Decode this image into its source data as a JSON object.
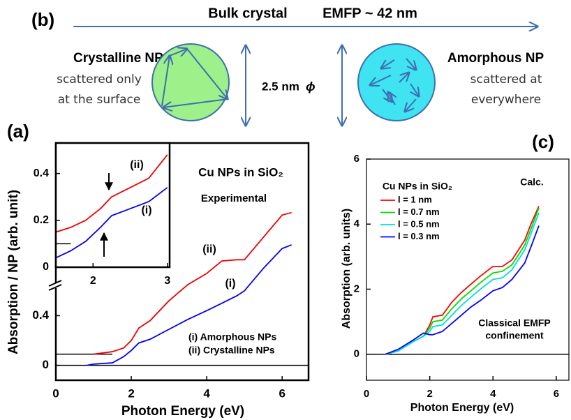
{
  "panel_b": {
    "label": "(b)",
    "header": "Bulk crystal",
    "emfp": "EMFP ~ 42 nm",
    "size": "2.5 nm",
    "size_symbol": "ϕ",
    "left_title": "Crystalline NP",
    "left_text": [
      "scattered only",
      "at the surface"
    ],
    "right_title": "Amorphous NP",
    "right_text": [
      "scattered at",
      "everywhere"
    ]
  },
  "chart_data": [
    {
      "type": "line",
      "panel_label": "(a)",
      "title": "Cu NPs in SiO₂",
      "subtitle": "Experimental",
      "x_label": "Photon Energy  (eV)",
      "y_label": "Absorption / NP  (arb. unit)",
      "x": [
        0.83,
        1.0,
        1.5,
        1.8,
        2.0,
        2.2,
        2.5,
        3.0,
        3.5,
        4.0,
        4.4,
        4.8,
        5.0,
        5.5,
        6.0,
        6.25
      ],
      "series": [
        {
          "name": "(i)  Amorphous NPs",
          "color": "#0000ee",
          "values": [
            0,
            0.01,
            0.02,
            0.07,
            0.12,
            0.18,
            0.21,
            0.29,
            0.37,
            0.44,
            0.5,
            0.56,
            0.6,
            0.78,
            0.94,
            0.97
          ]
        },
        {
          "name": "(ii) Crystalline NPs",
          "color": "#ee0000",
          "values": [
            null,
            0.09,
            0.11,
            0.14,
            0.2,
            0.3,
            0.36,
            0.52,
            0.65,
            0.74,
            0.84,
            0.85,
            0.85,
            1.03,
            1.21,
            1.23
          ]
        }
      ],
      "curve_labels": [
        "(i)",
        "(ii)"
      ],
      "hlines": [
        {
          "y": 0,
          "x": [
            0,
            6.7
          ]
        },
        {
          "y": 0.09,
          "x": [
            0,
            1.5
          ]
        }
      ],
      "xlim": [
        0,
        6.7
      ],
      "ylim": [
        -0.12,
        1.79
      ],
      "xticks": [
        0,
        2,
        4,
        6
      ],
      "yticks": [
        0,
        0.4
      ]
    },
    {
      "type": "line",
      "x": [
        1.5,
        1.7,
        1.9,
        2.1,
        2.25,
        2.5,
        2.75,
        3.0
      ],
      "series": [
        {
          "color": "#0000ee",
          "values": [
            0.04,
            0.07,
            0.11,
            0.17,
            0.22,
            0.25,
            0.28,
            0.34
          ]
        },
        {
          "color": "#ee0000",
          "values": [
            0.15,
            0.17,
            0.2,
            0.25,
            0.3,
            0.34,
            0.38,
            0.48
          ]
        }
      ],
      "curve_labels": [
        "(i)",
        "(ii)"
      ],
      "hlines": [
        {
          "y": 0.1,
          "x": [
            1.5,
            1.7
          ]
        }
      ],
      "xlim": [
        1.5,
        3.03
      ],
      "ylim": [
        0,
        0.53
      ],
      "xticks": [
        2,
        3
      ],
      "yticks": [
        0,
        0.2,
        0.4
      ]
    },
    {
      "type": "line",
      "panel_label": "(c)",
      "title": "Cu NPs in SiO₂",
      "subtitle": "Calc.",
      "annotation": [
        "Classical EMFP",
        "confinement"
      ],
      "x_label": "Photon Energy  (eV)",
      "y_label": "Absorption  (arb. units)",
      "x": [
        0.6,
        1.0,
        1.5,
        1.8,
        2.0,
        2.1,
        2.4,
        2.7,
        3.0,
        3.3,
        3.6,
        4.0,
        4.3,
        4.6,
        5.0,
        5.2,
        5.45
      ],
      "series": [
        {
          "name": "l = 1 nm",
          "color": "#ff0000",
          "values": [
            0,
            0.1,
            0.4,
            0.55,
            0.9,
            1.15,
            1.2,
            1.6,
            1.9,
            2.15,
            2.4,
            2.7,
            2.7,
            2.9,
            3.5,
            4.0,
            4.55
          ]
        },
        {
          "name": "l = 0.7 nm",
          "color": "#00dd00",
          "values": [
            0,
            0.1,
            0.4,
            0.55,
            0.8,
            1.0,
            1.05,
            1.4,
            1.7,
            1.95,
            2.2,
            2.5,
            2.55,
            2.75,
            3.35,
            3.85,
            4.5
          ]
        },
        {
          "name": "l = 0.5 nm",
          "color": "#00dddd",
          "values": [
            0,
            0.1,
            0.4,
            0.55,
            0.7,
            0.85,
            0.9,
            1.2,
            1.5,
            1.75,
            2.0,
            2.3,
            2.35,
            2.6,
            3.2,
            3.7,
            4.35
          ]
        },
        {
          "name": "l = 0.3 nm",
          "color": "#0000ff",
          "values": [
            0,
            0.15,
            0.45,
            0.65,
            0.6,
            0.6,
            0.7,
            0.95,
            1.2,
            1.45,
            1.65,
            1.95,
            2.05,
            2.3,
            2.8,
            3.3,
            3.95
          ]
        }
      ],
      "hlines": [
        {
          "y": 0,
          "x": [
            0,
            6.4
          ]
        }
      ],
      "xlim": [
        0,
        6.4
      ],
      "ylim": [
        -0.8,
        6
      ],
      "xticks": [
        0,
        2,
        4,
        6
      ],
      "yticks": [
        0,
        2,
        4,
        6
      ]
    }
  ]
}
